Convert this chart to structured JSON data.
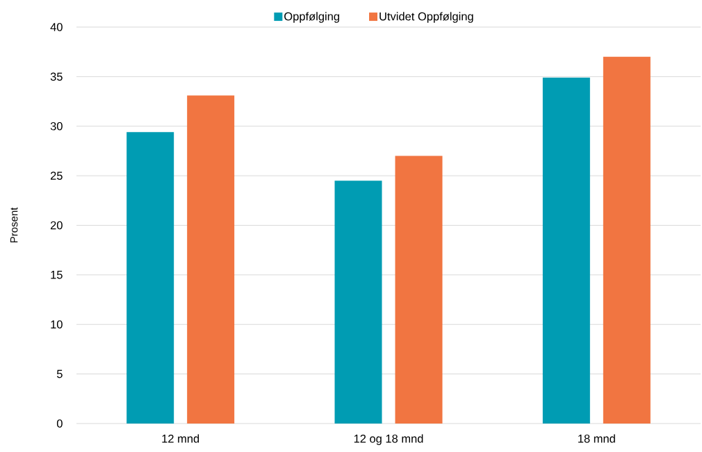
{
  "chart_data": {
    "type": "bar",
    "ylabel": "Prosent",
    "categories": [
      "12 mnd",
      "12 og 18 mnd",
      "18 mnd"
    ],
    "series": [
      {
        "name": "Oppfølging",
        "color": "#009cb3",
        "values": [
          29.4,
          24.5,
          34.9
        ]
      },
      {
        "name": "Utvidet Oppfølging",
        "color": "#f17541",
        "values": [
          33.1,
          27.0,
          37.0
        ]
      }
    ],
    "ylim": [
      0,
      40
    ],
    "yticks": [
      0,
      5,
      10,
      15,
      20,
      25,
      30,
      35,
      40
    ],
    "grid": "y",
    "legend": "top"
  }
}
